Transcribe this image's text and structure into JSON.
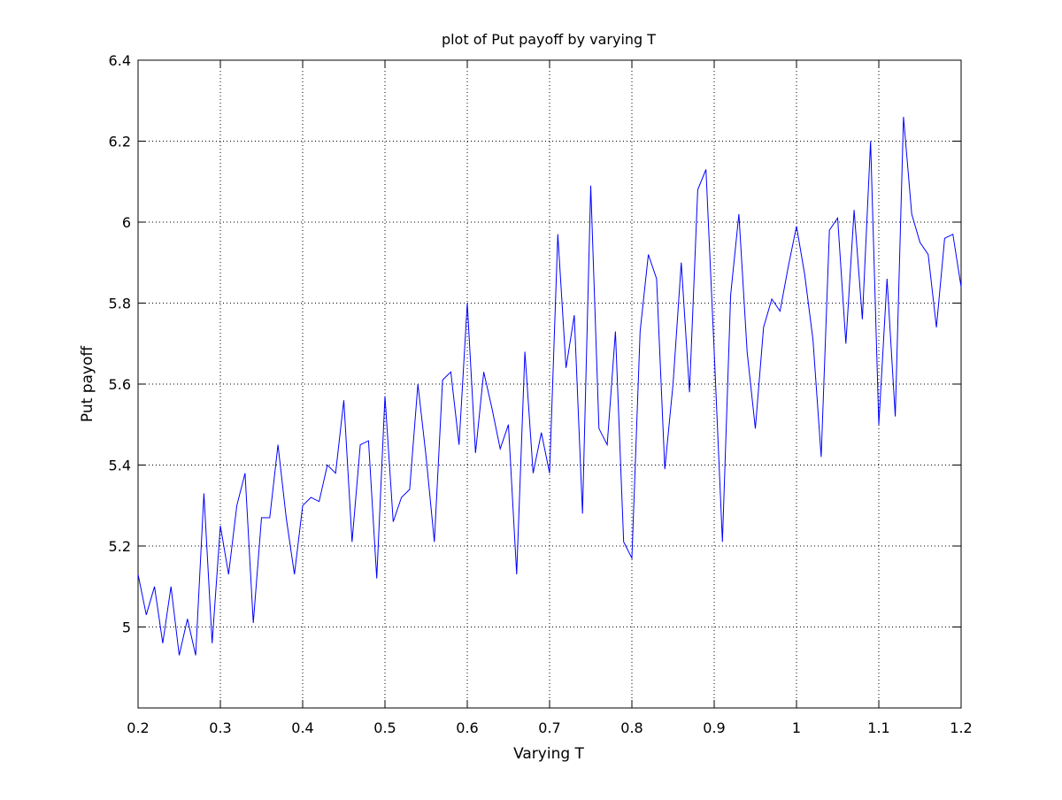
{
  "chart_data": {
    "type": "line",
    "title": "plot of Put payoff by varying T",
    "xlabel": "Varying T",
    "ylabel": "Put payoff",
    "xlim": [
      0.2,
      1.2
    ],
    "ylim": [
      4.8,
      6.4
    ],
    "xticks": [
      0.2,
      0.3,
      0.4,
      0.5,
      0.6,
      0.7,
      0.8,
      0.9,
      1.0,
      1.1,
      1.2
    ],
    "xtick_labels": [
      "0.2",
      "0.3",
      "0.4",
      "0.5",
      "0.6",
      "0.7",
      "0.8",
      "0.9",
      "1",
      "1.1",
      "1.2"
    ],
    "yticks": [
      5.0,
      5.2,
      5.4,
      5.6,
      5.8,
      6.0,
      6.2,
      6.4
    ],
    "ytick_labels": [
      "5",
      "5.2",
      "5.4",
      "5.6",
      "5.8",
      "6",
      "6.2",
      "6.4"
    ],
    "grid": true,
    "series": [
      {
        "color": "#0000ff",
        "x": [
          0.2,
          0.21,
          0.22,
          0.23,
          0.24,
          0.25,
          0.26,
          0.27,
          0.28,
          0.29,
          0.3,
          0.31,
          0.32,
          0.33,
          0.34,
          0.35,
          0.36,
          0.37,
          0.38,
          0.39,
          0.4,
          0.41,
          0.42,
          0.43,
          0.44,
          0.45,
          0.46,
          0.47,
          0.48,
          0.49,
          0.5,
          0.51,
          0.52,
          0.53,
          0.54,
          0.55,
          0.56,
          0.57,
          0.58,
          0.59,
          0.6,
          0.61,
          0.62,
          0.63,
          0.64,
          0.65,
          0.66,
          0.67,
          0.68,
          0.69,
          0.7,
          0.71,
          0.72,
          0.73,
          0.74,
          0.75,
          0.76,
          0.77,
          0.78,
          0.79,
          0.8,
          0.81,
          0.82,
          0.83,
          0.84,
          0.85,
          0.86,
          0.87,
          0.88,
          0.89,
          0.9,
          0.91,
          0.92,
          0.93,
          0.94,
          0.95,
          0.96,
          0.97,
          0.98,
          0.99,
          1.0,
          1.01,
          1.02,
          1.03,
          1.04,
          1.05,
          1.06,
          1.07,
          1.08,
          1.09,
          1.1,
          1.11,
          1.12,
          1.13,
          1.14,
          1.15,
          1.16,
          1.17,
          1.18,
          1.19,
          1.2
        ],
        "values": [
          5.13,
          5.03,
          5.1,
          4.96,
          5.1,
          4.93,
          5.02,
          4.93,
          5.33,
          4.96,
          5.25,
          5.13,
          5.3,
          5.38,
          5.01,
          5.27,
          5.27,
          5.45,
          5.27,
          5.13,
          5.3,
          5.32,
          5.31,
          5.4,
          5.38,
          5.56,
          5.21,
          5.45,
          5.46,
          5.12,
          5.57,
          5.26,
          5.32,
          5.34,
          5.6,
          5.42,
          5.21,
          5.61,
          5.63,
          5.45,
          5.8,
          5.43,
          5.63,
          5.54,
          5.44,
          5.5,
          5.13,
          5.68,
          5.38,
          5.48,
          5.38,
          5.97,
          5.64,
          5.77,
          5.28,
          6.09,
          5.49,
          5.45,
          5.73,
          5.21,
          5.17,
          5.73,
          5.92,
          5.86,
          5.39,
          5.6,
          5.9,
          5.58,
          6.08,
          6.13,
          5.68,
          5.21,
          5.82,
          6.02,
          5.68,
          5.49,
          5.74,
          5.81,
          5.78,
          5.89,
          5.99,
          5.87,
          5.71,
          5.42,
          5.98,
          6.01,
          5.7,
          6.03,
          5.76,
          6.2,
          5.5,
          5.86,
          5.52,
          6.26,
          6.02,
          5.95,
          5.92,
          5.74,
          5.96,
          5.97,
          5.84
        ]
      }
    ]
  }
}
